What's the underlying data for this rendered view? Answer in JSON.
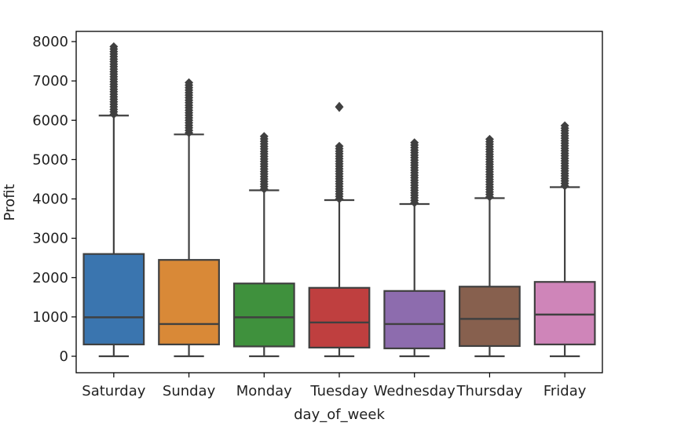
{
  "chart_data": {
    "type": "box",
    "title": "",
    "xlabel": "day_of_week",
    "ylabel": "Profit",
    "ylim": [
      -400,
      8300
    ],
    "yticks": [
      0,
      1000,
      2000,
      3000,
      4000,
      5000,
      6000,
      7000,
      8000
    ],
    "categories": [
      "Saturday",
      "Sunday",
      "Monday",
      "Tuesday",
      "Wednesday",
      "Thursday",
      "Friday"
    ],
    "colors": [
      "#3a75af",
      "#d98937",
      "#3f913d",
      "#bf3f3f",
      "#8d6cae",
      "#87604e",
      "#cf85b9"
    ],
    "line_color": "#404040",
    "boxes": [
      {
        "min": 0,
        "q1": 300,
        "median": 990,
        "q3": 2600,
        "whisker_high": 6120,
        "outlier_min": 6150,
        "outlier_max": 7900,
        "extra_outliers": []
      },
      {
        "min": 0,
        "q1": 300,
        "median": 820,
        "q3": 2450,
        "whisker_high": 5640,
        "outlier_min": 5680,
        "outlier_max": 7020,
        "extra_outliers": []
      },
      {
        "min": 0,
        "q1": 250,
        "median": 990,
        "q3": 1850,
        "whisker_high": 4220,
        "outlier_min": 4250,
        "outlier_max": 5600,
        "extra_outliers": []
      },
      {
        "min": 0,
        "q1": 220,
        "median": 860,
        "q3": 1740,
        "whisker_high": 3970,
        "outlier_min": 4000,
        "outlier_max": 5400,
        "extra_outliers": [
          6340
        ]
      },
      {
        "min": 0,
        "q1": 200,
        "median": 820,
        "q3": 1660,
        "whisker_high": 3870,
        "outlier_min": 3900,
        "outlier_max": 5470,
        "extra_outliers": []
      },
      {
        "min": 0,
        "q1": 260,
        "median": 950,
        "q3": 1770,
        "whisker_high": 4020,
        "outlier_min": 4050,
        "outlier_max": 5550,
        "extra_outliers": []
      },
      {
        "min": 0,
        "q1": 300,
        "median": 1060,
        "q3": 1890,
        "whisker_high": 4300,
        "outlier_min": 4330,
        "outlier_max": 5920,
        "extra_outliers": []
      }
    ]
  }
}
